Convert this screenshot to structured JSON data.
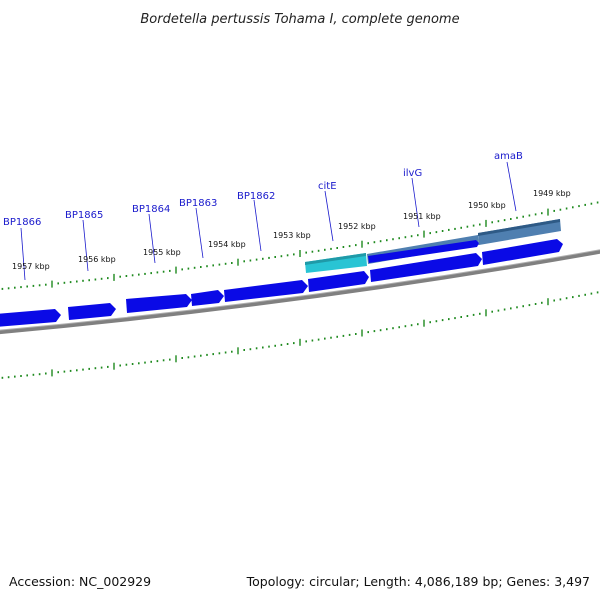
{
  "title": "Bordetella pertussis Tohama I, complete genome",
  "footer": {
    "accession_label": "Accession:",
    "accession": "NC_002929",
    "summary": "Topology: circular; Length: 4,086,189 bp; Genes: 3,497"
  },
  "colors": {
    "gene_label": "#1a1acc",
    "gene_fill": "#0a0ae6",
    "gene_shadow": "#3a3aff",
    "selected_fill": "#29c4d4",
    "highlight_fill": "#4f7fb0",
    "backbone": "#7a7a7a",
    "tick": "#1f8a1f"
  },
  "genes": [
    {
      "id": "BP1866",
      "label": "BP1866"
    },
    {
      "id": "BP1865",
      "label": "BP1865"
    },
    {
      "id": "BP1864",
      "label": "BP1864"
    },
    {
      "id": "BP1863",
      "label": "BP1863"
    },
    {
      "id": "BP1862",
      "label": "BP1862"
    },
    {
      "id": "citE",
      "label": "citE"
    },
    {
      "id": "ilvG",
      "label": "ilvG"
    },
    {
      "id": "amaB",
      "label": "amaB"
    }
  ],
  "scale": {
    "unit": "kbp",
    "ticks": [
      "1957 kbp",
      "1956 kbp",
      "1955 kbp",
      "1954 kbp",
      "1953 kbp",
      "1952 kbp",
      "1951 kbp",
      "1950 kbp",
      "1949 kbp"
    ]
  }
}
